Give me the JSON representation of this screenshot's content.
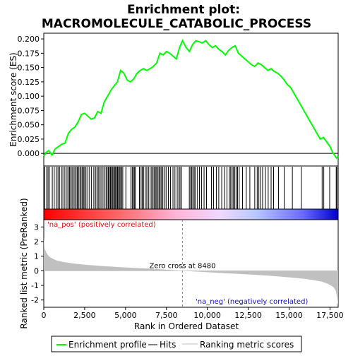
{
  "colors": {
    "enrichment_line": "#00ff00",
    "hits": "#000000",
    "metric_fill": "#c0c0c0",
    "zero_line_bottom": "#c8c8c8",
    "pos_text": "#e01010",
    "neg_text": "#1010c0",
    "legend_ranking_line": "#c0c0c0"
  },
  "chart_data": {
    "type": "line",
    "title": "Enrichment plot: MACROMOLECULE_CATABOLIC_PROCESS",
    "title_lines": [
      "Enrichment plot:",
      "MACROMOLECULE_CATABOLIC_PROCESS"
    ],
    "xlabel": "Rank in Ordered Dataset",
    "xlim": [
      0,
      18000
    ],
    "x_ticks": [
      0,
      2500,
      5000,
      7500,
      10000,
      12500,
      15000,
      17500
    ],
    "x_tick_labels": [
      "0",
      "2,500",
      "5,000",
      "7,500",
      "10,000",
      "12,500",
      "15,000",
      "17,500"
    ],
    "top_panel": {
      "ylabel": "Enrichment score (ES)",
      "ylim": [
        -0.022,
        0.21
      ],
      "y_ticks": [
        0.0,
        0.025,
        0.05,
        0.075,
        0.1,
        0.125,
        0.15,
        0.175,
        0.2
      ],
      "y_tick_labels": [
        "0.000",
        "0.025",
        "0.050",
        "0.075",
        "0.100",
        "0.125",
        "0.150",
        "0.175",
        "0.200"
      ],
      "series": [
        {
          "name": "Enrichment profile",
          "x": [
            0,
            150,
            300,
            500,
            700,
            900,
            1100,
            1300,
            1500,
            1700,
            1900,
            2100,
            2300,
            2500,
            2700,
            2900,
            3100,
            3300,
            3500,
            3700,
            3900,
            4100,
            4300,
            4500,
            4700,
            4900,
            5100,
            5300,
            5500,
            5700,
            5900,
            6100,
            6300,
            6500,
            6700,
            6900,
            7100,
            7300,
            7500,
            7700,
            7900,
            8100,
            8300,
            8480,
            8700,
            8900,
            9100,
            9300,
            9500,
            9700,
            9900,
            10100,
            10300,
            10500,
            10700,
            10900,
            11100,
            11300,
            11500,
            11700,
            11900,
            12100,
            12300,
            12500,
            12700,
            12900,
            13100,
            13300,
            13500,
            13700,
            13900,
            14100,
            14300,
            14500,
            14700,
            14900,
            15100,
            15300,
            15500,
            15700,
            15900,
            16100,
            16300,
            16500,
            16700,
            16900,
            17100,
            17300,
            17500,
            17700,
            17900,
            18000
          ],
          "values": [
            -0.005,
            0.002,
            0.005,
            -0.003,
            0.008,
            0.012,
            0.016,
            0.018,
            0.035,
            0.042,
            0.046,
            0.055,
            0.068,
            0.07,
            0.065,
            0.06,
            0.062,
            0.073,
            0.07,
            0.09,
            0.1,
            0.11,
            0.118,
            0.125,
            0.145,
            0.14,
            0.128,
            0.125,
            0.13,
            0.14,
            0.145,
            0.148,
            0.145,
            0.148,
            0.152,
            0.158,
            0.175,
            0.172,
            0.178,
            0.175,
            0.17,
            0.165,
            0.185,
            0.197,
            0.185,
            0.178,
            0.19,
            0.197,
            0.195,
            0.193,
            0.197,
            0.19,
            0.185,
            0.188,
            0.182,
            0.178,
            0.172,
            0.18,
            0.185,
            0.188,
            0.175,
            0.17,
            0.165,
            0.16,
            0.155,
            0.152,
            0.158,
            0.155,
            0.15,
            0.145,
            0.148,
            0.143,
            0.14,
            0.135,
            0.128,
            0.12,
            0.115,
            0.105,
            0.095,
            0.085,
            0.075,
            0.065,
            0.055,
            0.045,
            0.035,
            0.025,
            0.028,
            0.02,
            0.012,
            0.0,
            -0.008,
            -0.005
          ]
        }
      ]
    },
    "hits": [
      50,
      180,
      260,
      340,
      520,
      640,
      760,
      870,
      960,
      1080,
      1170,
      1290,
      1420,
      1500,
      1580,
      1650,
      1730,
      1810,
      1900,
      1980,
      2050,
      2130,
      2210,
      2280,
      2350,
      2430,
      2500,
      2580,
      2700,
      2800,
      2920,
      3060,
      3160,
      3250,
      3330,
      3420,
      3500,
      3620,
      3720,
      3810,
      3880,
      3950,
      4020,
      4080,
      4140,
      4200,
      4270,
      4330,
      4390,
      4450,
      4510,
      4570,
      4630,
      4700,
      4760,
      4830,
      5020,
      5330,
      5410,
      5480,
      5540,
      5600,
      5850,
      5950,
      6020,
      6100,
      6200,
      6300,
      6400,
      6500,
      6600,
      6680,
      6750,
      6830,
      6900,
      6980,
      7050,
      7120,
      7200,
      7280,
      7380,
      7480,
      7620,
      7750,
      7900,
      8020,
      8160,
      8260,
      8330,
      8420,
      8900,
      8980,
      9050,
      9120,
      9200,
      9280,
      9400,
      9520,
      9650,
      9800,
      9950,
      10250,
      10380,
      10550,
      10700,
      10880,
      11050,
      11200,
      11350,
      11430,
      11520,
      11600,
      11680,
      11760,
      11850,
      11950,
      12150,
      12380,
      12600,
      12900,
      13050,
      13150,
      13260,
      13380,
      13550,
      13720,
      13900,
      14050,
      14350,
      14700,
      15200,
      15750,
      17020,
      17120,
      17480,
      17880,
      17920
    ],
    "bottom_panel": {
      "ylabel": "Ranked list metric (PreRanked)",
      "ylim": [
        -2.5,
        3.5
      ],
      "y_ticks": [
        -2,
        -1,
        0,
        1,
        2,
        3
      ],
      "y_tick_labels": [
        "-2",
        "-1",
        "0",
        "1",
        "2",
        "3"
      ],
      "series": [
        {
          "name": "Ranking metric scores",
          "x": [
            0,
            50,
            150,
            300,
            500,
            800,
            1200,
            1800,
            2500,
            3500,
            4500,
            5500,
            6500,
            7500,
            8480,
            9500,
            10500,
            11500,
            12500,
            13500,
            14500,
            15500,
            16000,
            16500,
            17000,
            17300,
            17500,
            17700,
            17850,
            17930,
            18000
          ],
          "values": [
            2.3,
            1.55,
            1.25,
            1.0,
            0.85,
            0.7,
            0.6,
            0.5,
            0.42,
            0.33,
            0.26,
            0.2,
            0.14,
            0.08,
            0.0,
            -0.07,
            -0.13,
            -0.19,
            -0.25,
            -0.32,
            -0.4,
            -0.5,
            -0.56,
            -0.64,
            -0.75,
            -0.86,
            -0.97,
            -1.1,
            -1.35,
            -1.8,
            -2.35
          ]
        }
      ],
      "zero_cross_label": "Zero cross at 8480",
      "zero_cross_x": 8480,
      "pos_label": "'na_pos' (positively correlated)",
      "neg_label": "'na_neg' (negatively correlated)"
    },
    "legend": {
      "placement": "bottom",
      "items": [
        {
          "label": "Enrichment profile"
        },
        {
          "label": "Hits"
        },
        {
          "label": "Ranking metric scores"
        }
      ]
    }
  }
}
